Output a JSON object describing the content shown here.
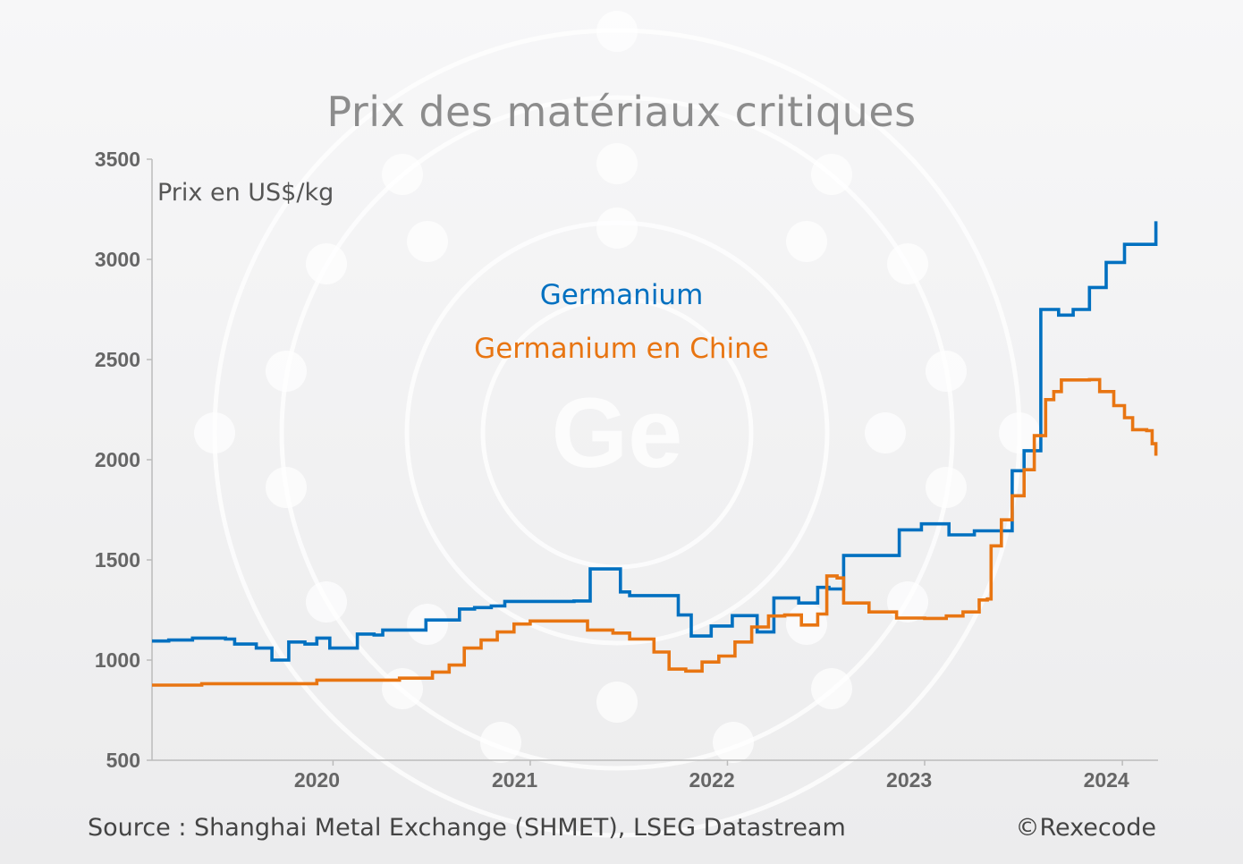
{
  "chart_data": {
    "type": "line",
    "title": "Prix des matériaux critiques",
    "ylabel": "Prix en US$/kg",
    "xlabel": "",
    "ylim": [
      500,
      3500
    ],
    "xlim": [
      "2019-08-01",
      "2024-09-05"
    ],
    "y_ticks": [
      500,
      1000,
      1500,
      2000,
      2500,
      3000,
      3500
    ],
    "x_tick_labels": [
      "2020",
      "2021",
      "2022",
      "2023",
      "2024"
    ],
    "grid": false,
    "background_watermark": "Ge",
    "step": true,
    "series": [
      {
        "name": "Germanium",
        "color": "#0070c0",
        "points": [
          [
            "2019-08-01",
            1095
          ],
          [
            "2019-09-01",
            1100
          ],
          [
            "2019-10-15",
            1110
          ],
          [
            "2019-12-15",
            1105
          ],
          [
            "2020-01-01",
            1080
          ],
          [
            "2020-02-10",
            1060
          ],
          [
            "2020-03-10",
            1000
          ],
          [
            "2020-04-10",
            1090
          ],
          [
            "2020-05-10",
            1080
          ],
          [
            "2020-06-01",
            1110
          ],
          [
            "2020-06-25",
            1060
          ],
          [
            "2020-08-15",
            1130
          ],
          [
            "2020-09-15",
            1125
          ],
          [
            "2020-10-01",
            1150
          ],
          [
            "2020-12-20",
            1200
          ],
          [
            "2021-02-20",
            1255
          ],
          [
            "2021-03-20",
            1262
          ],
          [
            "2021-04-20",
            1270
          ],
          [
            "2021-05-15",
            1293
          ],
          [
            "2021-09-20",
            1295
          ],
          [
            "2021-10-20",
            1455
          ],
          [
            "2021-12-15",
            1340
          ],
          [
            "2022-01-01",
            1322
          ],
          [
            "2022-04-01",
            1225
          ],
          [
            "2022-04-25",
            1120
          ],
          [
            "2022-06-01",
            1170
          ],
          [
            "2022-07-10",
            1222
          ],
          [
            "2022-08-25",
            1140
          ],
          [
            "2022-09-25",
            1310
          ],
          [
            "2022-11-10",
            1285
          ],
          [
            "2022-12-15",
            1363
          ],
          [
            "2023-01-05",
            1355
          ],
          [
            "2023-02-01",
            1522
          ],
          [
            "2023-05-15",
            1650
          ],
          [
            "2023-06-25",
            1680
          ],
          [
            "2023-08-15",
            1625
          ],
          [
            "2023-10-01",
            1645
          ],
          [
            "2023-12-10",
            1945
          ],
          [
            "2024-01-01",
            2045
          ],
          [
            "2024-02-01",
            2750
          ],
          [
            "2024-03-05",
            2722
          ],
          [
            "2024-04-01",
            2750
          ],
          [
            "2024-05-01",
            2860
          ],
          [
            "2024-06-01",
            2985
          ],
          [
            "2024-07-05",
            3075
          ],
          [
            "2024-08-05",
            3075
          ],
          [
            "2024-09-01",
            3190
          ]
        ]
      },
      {
        "name": "Germanium en Chine",
        "color": "#e87512",
        "points": [
          [
            "2019-08-01",
            875
          ],
          [
            "2019-11-01",
            882
          ],
          [
            "2020-06-01",
            900
          ],
          [
            "2020-11-01",
            910
          ],
          [
            "2021-01-01",
            940
          ],
          [
            "2021-02-01",
            975
          ],
          [
            "2021-03-01",
            1060
          ],
          [
            "2021-04-01",
            1100
          ],
          [
            "2021-05-01",
            1140
          ],
          [
            "2021-06-01",
            1180
          ],
          [
            "2021-07-01",
            1195
          ],
          [
            "2021-09-01",
            1195
          ],
          [
            "2021-10-15",
            1150
          ],
          [
            "2021-12-01",
            1135
          ],
          [
            "2022-01-01",
            1105
          ],
          [
            "2022-02-15",
            1040
          ],
          [
            "2022-03-15",
            955
          ],
          [
            "2022-04-15",
            945
          ],
          [
            "2022-05-15",
            990
          ],
          [
            "2022-06-15",
            1020
          ],
          [
            "2022-07-15",
            1090
          ],
          [
            "2022-08-15",
            1165
          ],
          [
            "2022-09-15",
            1220
          ],
          [
            "2022-10-15",
            1225
          ],
          [
            "2022-11-15",
            1175
          ],
          [
            "2022-12-15",
            1230
          ],
          [
            "2023-01-01",
            1420
          ],
          [
            "2023-01-20",
            1410
          ],
          [
            "2023-02-01",
            1285
          ],
          [
            "2023-03-20",
            1240
          ],
          [
            "2023-05-10",
            1210
          ],
          [
            "2023-07-01",
            1208
          ],
          [
            "2023-08-10",
            1220
          ],
          [
            "2023-09-10",
            1240
          ],
          [
            "2023-10-10",
            1300
          ],
          [
            "2023-10-25",
            1305
          ],
          [
            "2023-11-01",
            1570
          ],
          [
            "2023-11-20",
            1700
          ],
          [
            "2023-12-10",
            1820
          ],
          [
            "2024-01-01",
            1950
          ],
          [
            "2024-01-20",
            2120
          ],
          [
            "2024-02-10",
            2300
          ],
          [
            "2024-02-25",
            2340
          ],
          [
            "2024-03-10",
            2398
          ],
          [
            "2024-05-01",
            2400
          ],
          [
            "2024-05-20",
            2340
          ],
          [
            "2024-06-15",
            2270
          ],
          [
            "2024-07-05",
            2210
          ],
          [
            "2024-07-20",
            2150
          ],
          [
            "2024-08-15",
            2145
          ],
          [
            "2024-08-25",
            2080
          ],
          [
            "2024-09-01",
            2020
          ]
        ]
      }
    ]
  },
  "legend": {
    "germanium": "Germanium",
    "germanium_chine": "Germanium en Chine"
  },
  "footer": {
    "source": "Source : Shanghai Metal Exchange (SHMET), LSEG Datastream",
    "copyright": "©Rexecode"
  }
}
